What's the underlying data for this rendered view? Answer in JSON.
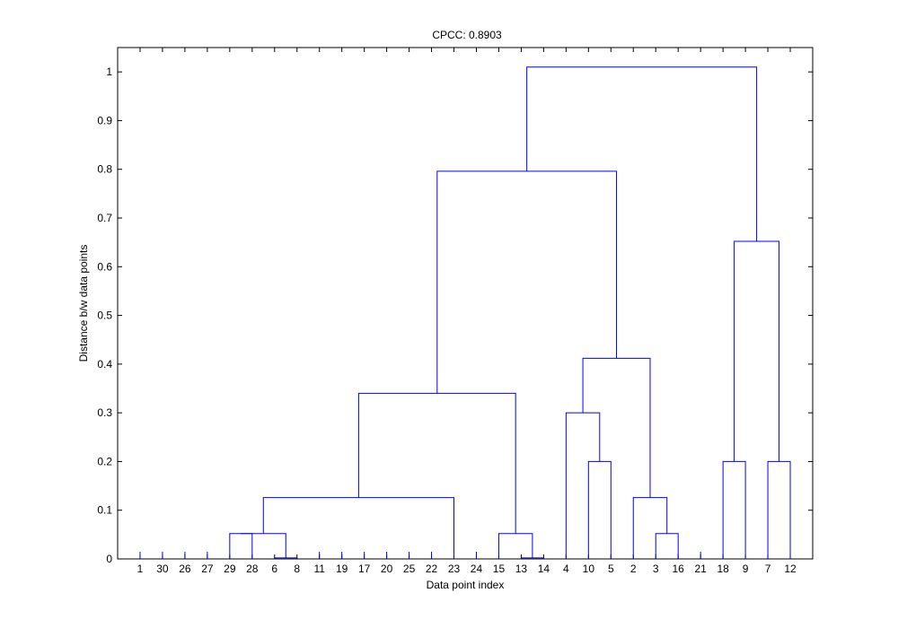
{
  "chart_data": {
    "type": "dendrogram",
    "title": "CPCC: 0.8903",
    "xlabel": "Data point index",
    "ylabel": "Distance b/w data points",
    "ylim": [
      0,
      1.05
    ],
    "yticks": [
      0,
      0.1,
      0.2,
      0.3,
      0.4,
      0.5,
      0.6,
      0.7,
      0.8,
      0.9,
      1
    ],
    "ytick_labels": [
      "0",
      "0.1",
      "0.2",
      "0.3",
      "0.4",
      "0.5",
      "0.6",
      "0.7",
      "0.8",
      "0.9",
      "1"
    ],
    "leaf_order": [
      "1",
      "30",
      "26",
      "27",
      "29",
      "28",
      "6",
      "8",
      "11",
      "19",
      "17",
      "20",
      "25",
      "22",
      "23",
      "24",
      "15",
      "13",
      "14",
      "4",
      "10",
      "5",
      "2",
      "3",
      "16",
      "21",
      "18",
      "9",
      "7",
      "12"
    ],
    "merges": [
      {
        "id": "m1",
        "left": "6",
        "right": "8",
        "height": 0.002
      },
      {
        "id": "m2",
        "left": "29",
        "right": "28",
        "height": 0.052
      },
      {
        "id": "m3",
        "left": "m2",
        "right": "m1",
        "height": 0.052
      },
      {
        "id": "m4",
        "left": "m3",
        "right": "23",
        "height": 0.126
      },
      {
        "id": "m5",
        "left": "13",
        "right": "14",
        "height": 0.002
      },
      {
        "id": "m6",
        "left": "15",
        "right": "m5",
        "height": 0.052
      },
      {
        "id": "m7",
        "left": "m4",
        "right": "m6",
        "height": 0.34
      },
      {
        "id": "m8",
        "left": "10",
        "right": "5",
        "height": 0.2
      },
      {
        "id": "m9",
        "left": "4",
        "right": "m8",
        "height": 0.3
      },
      {
        "id": "m10",
        "left": "3",
        "right": "16",
        "height": 0.052
      },
      {
        "id": "m11",
        "left": "2",
        "right": "m10",
        "height": 0.126
      },
      {
        "id": "m12",
        "left": "m9",
        "right": "m11",
        "height": 0.412
      },
      {
        "id": "m13",
        "left": "m7",
        "right": "m12",
        "height": 0.796
      },
      {
        "id": "m14",
        "left": "18",
        "right": "9",
        "height": 0.2
      },
      {
        "id": "m15",
        "left": "7",
        "right": "12",
        "height": 0.2
      },
      {
        "id": "m16",
        "left": "m14",
        "right": "m15",
        "height": 0.652
      },
      {
        "id": "m17",
        "left": "m13",
        "right": "m16",
        "height": 1.01
      }
    ],
    "unmerged_leaves": [
      "1",
      "30",
      "26",
      "27",
      "11",
      "19",
      "17",
      "20",
      "25",
      "22",
      "24",
      "21"
    ],
    "line_color": "#0000ff"
  }
}
